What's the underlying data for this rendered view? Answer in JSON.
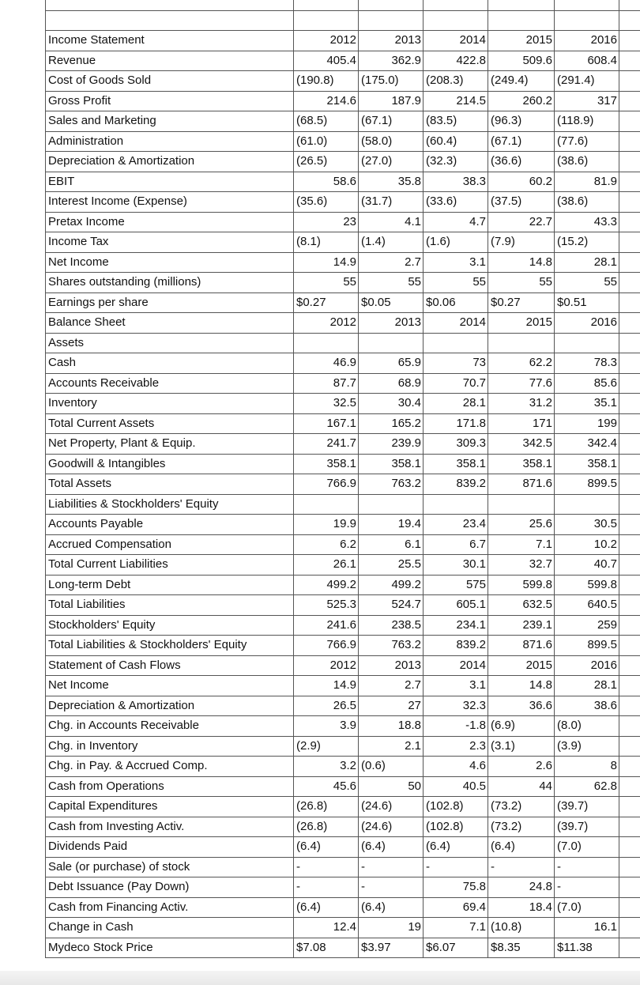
{
  "table": {
    "rows": [
      [
        "Income Statement",
        "2012",
        "2013",
        "2014",
        "2015",
        "2016"
      ],
      [
        "Revenue",
        "405.4",
        "362.9",
        "422.8",
        "509.6",
        "608.4"
      ],
      [
        "Cost of Goods Sold",
        "(190.8)",
        "(175.0)",
        "(208.3)",
        "(249.4)",
        "(291.4)"
      ],
      [
        "Gross Profit",
        "214.6",
        "187.9",
        "214.5",
        "260.2",
        "317"
      ],
      [
        "Sales and Marketing",
        "(68.5)",
        "(67.1)",
        "(83.5)",
        "(96.3)",
        "(118.9)"
      ],
      [
        "Administration",
        "(61.0)",
        "(58.0)",
        "(60.4)",
        "(67.1)",
        "(77.6)"
      ],
      [
        "Depreciation & Amortization",
        "(26.5)",
        "(27.0)",
        "(32.3)",
        "(36.6)",
        "(38.6)"
      ],
      [
        "EBIT",
        "58.6",
        "35.8",
        "38.3",
        "60.2",
        "81.9"
      ],
      [
        "Interest Income (Expense)",
        "(35.6)",
        "(31.7)",
        "(33.6)",
        "(37.5)",
        "(38.6)"
      ],
      [
        "Pretax Income",
        "23",
        "4.1",
        "4.7",
        "22.7",
        "43.3"
      ],
      [
        "Income Tax",
        "(8.1)",
        "(1.4)",
        "(1.6)",
        "(7.9)",
        "(15.2)"
      ],
      [
        "Net Income",
        "14.9",
        "2.7",
        "3.1",
        "14.8",
        "28.1"
      ],
      [
        "Shares outstanding (millions)",
        "55",
        "55",
        "55",
        "55",
        "55"
      ],
      [
        "Earnings per share",
        "$0.27",
        "$0.05",
        "$0.06",
        "$0.27",
        "$0.51"
      ],
      [
        "Balance Sheet",
        "2012",
        "2013",
        "2014",
        "2015",
        "2016"
      ],
      [
        "Assets",
        null,
        null,
        null,
        null,
        null
      ],
      [
        "Cash",
        "46.9",
        "65.9",
        "73",
        "62.2",
        "78.3"
      ],
      [
        "Accounts Receivable",
        "87.7",
        "68.9",
        "70.7",
        "77.6",
        "85.6"
      ],
      [
        "Inventory",
        "32.5",
        "30.4",
        "28.1",
        "31.2",
        "35.1"
      ],
      [
        "Total Current Assets",
        "167.1",
        "165.2",
        "171.8",
        "171",
        "199"
      ],
      [
        "Net Property, Plant & Equip.",
        "241.7",
        "239.9",
        "309.3",
        "342.5",
        "342.4"
      ],
      [
        "Goodwill & Intangibles",
        "358.1",
        "358.1",
        "358.1",
        "358.1",
        "358.1"
      ],
      [
        "Total Assets",
        "766.9",
        "763.2",
        "839.2",
        "871.6",
        "899.5"
      ],
      [
        "Liabilities & Stockholders' Equity",
        null,
        null,
        null,
        null,
        null
      ],
      [
        "Accounts Payable",
        "19.9",
        "19.4",
        "23.4",
        "25.6",
        "30.5"
      ],
      [
        "Accrued Compensation",
        "6.2",
        "6.1",
        "6.7",
        "7.1",
        "10.2"
      ],
      [
        "Total Current Liabilities",
        "26.1",
        "25.5",
        "30.1",
        "32.7",
        "40.7"
      ],
      [
        "Long-term Debt",
        "499.2",
        "499.2",
        "575",
        "599.8",
        "599.8"
      ],
      [
        "Total Liabilities",
        "525.3",
        "524.7",
        "605.1",
        "632.5",
        "640.5"
      ],
      [
        "Stockholders' Equity",
        "241.6",
        "238.5",
        "234.1",
        "239.1",
        "259"
      ],
      [
        "Total Liabilities & Stockholders' Equity",
        "766.9",
        "763.2",
        "839.2",
        "871.6",
        "899.5"
      ],
      [
        "Statement of Cash Flows",
        "2012",
        "2013",
        "2014",
        "2015",
        "2016"
      ],
      [
        "Net Income",
        "14.9",
        "2.7",
        "3.1",
        "14.8",
        "28.1"
      ],
      [
        "Depreciation & Amortization",
        "26.5",
        "27",
        "32.3",
        "36.6",
        "38.6"
      ],
      [
        "Chg. in Accounts Receivable",
        "3.9",
        "18.8",
        "-1.8",
        "(6.9)",
        "(8.0)"
      ],
      [
        "Chg. in Inventory",
        "(2.9)",
        "2.1",
        "2.3",
        "(3.1)",
        "(3.9)"
      ],
      [
        "Chg. in Pay. & Accrued Comp.",
        "3.2",
        "(0.6)",
        "4.6",
        "2.6",
        "8"
      ],
      [
        "Cash from Operations",
        "45.6",
        "50",
        "40.5",
        "44",
        "62.8"
      ],
      [
        "Capital Expenditures",
        "(26.8)",
        "(24.6)",
        "(102.8)",
        "(73.2)",
        "(39.7)"
      ],
      [
        "Cash from Investing Activ.",
        "(26.8)",
        "(24.6)",
        "(102.8)",
        "(73.2)",
        "(39.7)"
      ],
      [
        "Dividends Paid",
        "(6.4)",
        "(6.4)",
        "(6.4)",
        "(6.4)",
        "(7.0)"
      ],
      [
        "Sale (or purchase) of stock",
        "-",
        "-",
        "-",
        "-",
        "-"
      ],
      [
        "Debt Issuance (Pay Down)",
        "-",
        "-",
        "75.8",
        "24.8",
        "-"
      ],
      [
        "Cash from Financing Activ.",
        "(6.4)",
        "(6.4)",
        "69.4",
        "18.4",
        "(7.0)"
      ],
      [
        "Change in Cash",
        "12.4",
        "19",
        "7.1",
        "(10.8)",
        "16.1"
      ],
      [
        "Mydeco Stock Price",
        "$7.08",
        "$3.97",
        "$6.07",
        "$8.35",
        "$11.38"
      ]
    ]
  }
}
